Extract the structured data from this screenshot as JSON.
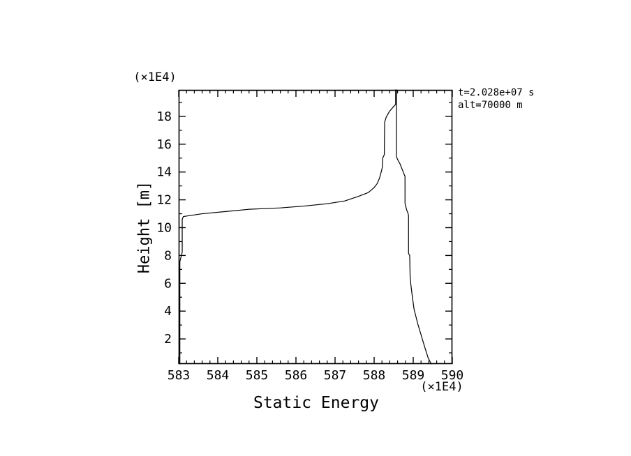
{
  "figure": {
    "background": "#ffffff",
    "line_color": "#000000"
  },
  "chart_data": {
    "type": "line",
    "title": "",
    "xlabel": "Static Energy",
    "ylabel": "Height [m]",
    "x_multiplier_label": "(×1E4)",
    "y_multiplier_label": "(×1E4)",
    "xlim": [
      583,
      590
    ],
    "ylim": [
      0.2,
      19.9
    ],
    "grid": false,
    "legend": "none",
    "xticks": {
      "values": [
        583,
        584,
        585,
        586,
        587,
        588,
        589,
        590
      ],
      "labels": [
        "583",
        "584",
        "585",
        "586",
        "587",
        "588",
        "589",
        "590"
      ],
      "minor_step": 0.2
    },
    "yticks": {
      "values": [
        2,
        4,
        6,
        8,
        10,
        12,
        14,
        16,
        18
      ],
      "labels": [
        "2",
        "4",
        "6",
        "8",
        "10",
        "12",
        "14",
        "16",
        "18"
      ],
      "minor_step": 1
    },
    "annotations": [
      "t=2.028e+07 s",
      "alt=70000 m"
    ],
    "series": [
      {
        "name": "static_energy_profile",
        "color": "#000000",
        "points": [
          [
            583.03,
            0.2
          ],
          [
            583.03,
            7.55
          ],
          [
            583.05,
            7.8
          ],
          [
            583.08,
            8.1
          ],
          [
            583.09,
            8.25
          ],
          [
            583.09,
            10.6
          ],
          [
            583.12,
            10.8
          ],
          [
            583.6,
            11.0
          ],
          [
            584.2,
            11.16
          ],
          [
            584.8,
            11.32
          ],
          [
            585.6,
            11.42
          ],
          [
            586.2,
            11.55
          ],
          [
            586.8,
            11.72
          ],
          [
            587.25,
            11.92
          ],
          [
            587.6,
            12.25
          ],
          [
            587.85,
            12.52
          ],
          [
            588.0,
            12.88
          ],
          [
            588.08,
            13.18
          ],
          [
            588.14,
            13.58
          ],
          [
            588.19,
            14.1
          ],
          [
            588.21,
            14.35
          ],
          [
            588.22,
            15.0
          ],
          [
            588.26,
            15.25
          ],
          [
            588.27,
            17.6
          ],
          [
            588.31,
            17.95
          ],
          [
            588.39,
            18.35
          ],
          [
            588.48,
            18.65
          ],
          [
            588.55,
            18.87
          ],
          [
            588.55,
            19.9
          ],
          [
            588.57,
            19.9
          ],
          [
            588.57,
            15.1
          ],
          [
            588.61,
            14.85
          ],
          [
            588.66,
            14.6
          ],
          [
            588.73,
            14.1
          ],
          [
            588.79,
            13.68
          ],
          [
            588.79,
            11.75
          ],
          [
            588.83,
            11.3
          ],
          [
            588.87,
            11.0
          ],
          [
            588.88,
            10.85
          ],
          [
            588.88,
            8.15
          ],
          [
            588.91,
            8.0
          ],
          [
            588.92,
            6.55
          ],
          [
            588.94,
            5.9
          ],
          [
            588.97,
            5.2
          ],
          [
            589.02,
            4.16
          ],
          [
            589.11,
            3.15
          ],
          [
            589.2,
            2.3
          ],
          [
            589.29,
            1.45
          ],
          [
            589.38,
            0.65
          ],
          [
            589.46,
            0.2
          ]
        ]
      }
    ]
  }
}
